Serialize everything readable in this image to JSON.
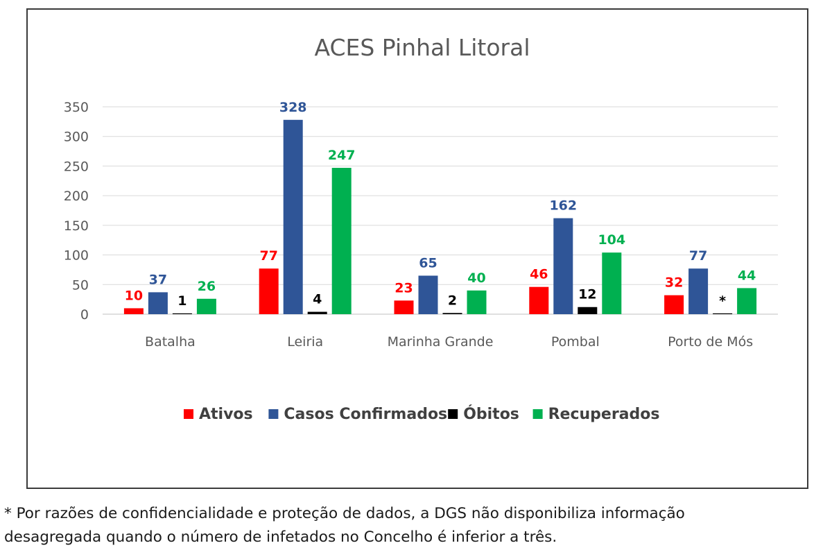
{
  "chart_data": {
    "type": "bar",
    "title": "ACES Pinhal Litoral",
    "xlabel": "",
    "ylabel": "",
    "ylim": [
      0,
      350
    ],
    "yticks": [
      0,
      50,
      100,
      150,
      200,
      250,
      300,
      350
    ],
    "grid": true,
    "legend_position": "bottom",
    "categories": [
      "Batalha",
      "Leiria",
      "Marinha Grande",
      "Pombal",
      "Porto de Mós"
    ],
    "series": [
      {
        "name": "Ativos",
        "color": "#ff0000",
        "values": [
          10,
          77,
          23,
          46,
          32
        ],
        "labels": [
          "10",
          "77",
          "23",
          "46",
          "32"
        ]
      },
      {
        "name": "Casos Confirmados",
        "color": "#2f5597",
        "values": [
          37,
          328,
          65,
          162,
          77
        ],
        "labels": [
          "37",
          "328",
          "65",
          "162",
          "77"
        ]
      },
      {
        "name": "Óbitos",
        "color": "#000000",
        "values": [
          1,
          4,
          2,
          12,
          0
        ],
        "labels": [
          "1",
          "4",
          "2",
          "12",
          "*"
        ]
      },
      {
        "name": "Recuperados",
        "color": "#00b050",
        "values": [
          26,
          247,
          40,
          104,
          44
        ],
        "labels": [
          "26",
          "247",
          "40",
          "104",
          "44"
        ]
      }
    ]
  },
  "footnote": {
    "line1": "* Por razões de confidencialidade e proteção de dados, a DGS não disponibiliza informação",
    "line2": "desagregada quando o número de infetados no Concelho é inferior a três."
  }
}
